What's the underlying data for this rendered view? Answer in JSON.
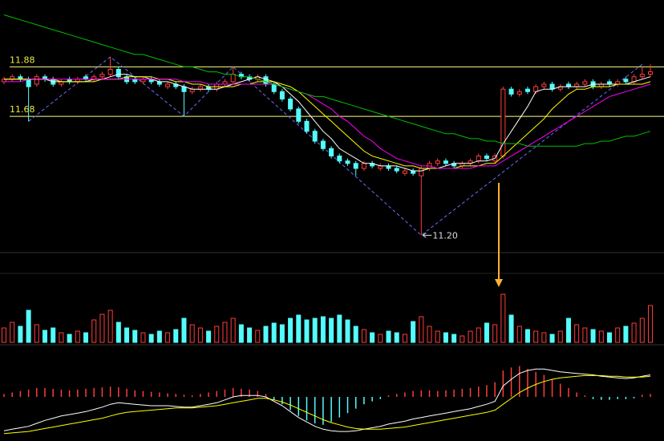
{
  "chart_data": {
    "type": "candlestick",
    "up_color": "#ff3c3c",
    "down_color": "#54fcfc",
    "ylim": [
      11.13,
      12.15
    ],
    "hlines": [
      11.88,
      11.68
    ],
    "hline_color": "#ffff80",
    "open": [
      11.82,
      11.83,
      11.84,
      11.83,
      11.81,
      11.84,
      11.83,
      11.81,
      11.83,
      11.82,
      11.84,
      11.83,
      11.84,
      11.85,
      11.87,
      11.84,
      11.83,
      11.82,
      11.83,
      11.82,
      11.8,
      11.81,
      11.8,
      11.78,
      11.79,
      11.8,
      11.79,
      11.81,
      11.82,
      11.85,
      11.84,
      11.83,
      11.84,
      11.81,
      11.78,
      11.75,
      11.71,
      11.66,
      11.62,
      11.58,
      11.55,
      11.52,
      11.5,
      11.49,
      11.47,
      11.49,
      11.47,
      11.48,
      11.47,
      11.45,
      11.46,
      11.44,
      11.47,
      11.49,
      11.5,
      11.49,
      11.48,
      11.49,
      11.5,
      11.52,
      11.5,
      11.52,
      11.79,
      11.77,
      11.79,
      11.78,
      11.8,
      11.81,
      11.79,
      11.81,
      11.8,
      11.81,
      11.82,
      11.8,
      11.82,
      11.81,
      11.83,
      11.82,
      11.84,
      11.85
    ],
    "high": [
      11.84,
      11.85,
      11.85,
      11.84,
      11.85,
      11.85,
      11.84,
      11.83,
      11.84,
      11.84,
      11.85,
      11.85,
      11.86,
      11.92,
      11.88,
      11.85,
      11.84,
      11.84,
      11.84,
      11.83,
      11.82,
      11.82,
      11.81,
      11.8,
      11.81,
      11.81,
      11.82,
      11.83,
      11.88,
      11.86,
      11.85,
      11.85,
      11.85,
      11.82,
      11.79,
      11.76,
      11.72,
      11.67,
      11.63,
      11.59,
      11.56,
      11.53,
      11.51,
      11.5,
      11.5,
      11.5,
      11.49,
      11.49,
      11.48,
      11.47,
      11.47,
      11.48,
      11.5,
      11.51,
      11.51,
      11.5,
      11.5,
      11.51,
      11.53,
      11.53,
      11.53,
      11.8,
      11.8,
      11.79,
      11.8,
      11.81,
      11.82,
      11.82,
      11.81,
      11.82,
      11.82,
      11.83,
      11.83,
      11.82,
      11.83,
      11.83,
      11.84,
      11.85,
      11.88,
      11.89
    ],
    "low": [
      11.81,
      11.82,
      11.82,
      11.66,
      11.8,
      11.82,
      11.8,
      11.8,
      11.81,
      11.81,
      11.82,
      11.82,
      11.83,
      11.84,
      11.83,
      11.81,
      11.81,
      11.81,
      11.81,
      11.8,
      11.79,
      11.79,
      11.68,
      11.77,
      11.78,
      11.78,
      11.78,
      11.8,
      11.81,
      11.83,
      11.82,
      11.82,
      11.8,
      11.77,
      11.74,
      11.7,
      11.65,
      11.61,
      11.57,
      11.54,
      11.51,
      11.49,
      11.48,
      11.44,
      11.46,
      11.47,
      11.46,
      11.46,
      11.45,
      11.44,
      11.44,
      11.2,
      11.46,
      11.48,
      11.48,
      11.47,
      11.47,
      11.48,
      11.49,
      11.5,
      11.49,
      11.51,
      11.76,
      11.76,
      11.77,
      11.77,
      11.79,
      11.78,
      11.78,
      11.79,
      11.79,
      11.8,
      11.79,
      11.79,
      11.8,
      11.8,
      11.81,
      11.81,
      11.83,
      11.84
    ],
    "close": [
      11.83,
      11.84,
      11.83,
      11.8,
      11.84,
      11.83,
      11.81,
      11.82,
      11.82,
      11.83,
      11.83,
      11.84,
      11.85,
      11.87,
      11.84,
      11.82,
      11.82,
      11.83,
      11.82,
      11.81,
      11.81,
      11.8,
      11.78,
      11.79,
      11.8,
      11.79,
      11.81,
      11.82,
      11.85,
      11.84,
      11.83,
      11.84,
      11.81,
      11.78,
      11.75,
      11.71,
      11.66,
      11.62,
      11.58,
      11.55,
      11.52,
      11.5,
      11.49,
      11.47,
      11.49,
      11.48,
      11.48,
      11.47,
      11.46,
      11.46,
      11.45,
      11.47,
      11.49,
      11.5,
      11.49,
      11.48,
      11.49,
      11.5,
      11.52,
      11.51,
      11.52,
      11.79,
      11.77,
      11.78,
      11.78,
      11.8,
      11.81,
      11.79,
      11.8,
      11.8,
      11.81,
      11.82,
      11.8,
      11.81,
      11.81,
      11.82,
      11.82,
      11.84,
      11.85,
      11.86
    ],
    "lines": [
      {
        "color": "#ffffff",
        "values": [
          11.83,
          11.83,
          11.83,
          11.83,
          11.83,
          11.83,
          11.82,
          11.82,
          11.82,
          11.82,
          11.82,
          11.83,
          11.83,
          11.84,
          11.85,
          11.85,
          11.84,
          11.84,
          11.83,
          11.82,
          11.82,
          11.81,
          11.8,
          11.79,
          11.79,
          11.79,
          11.79,
          11.8,
          11.81,
          11.82,
          11.83,
          11.84,
          11.83,
          11.82,
          11.8,
          11.77,
          11.74,
          11.7,
          11.66,
          11.62,
          11.59,
          11.55,
          11.53,
          11.51,
          11.49,
          11.49,
          11.48,
          11.48,
          11.48,
          11.47,
          11.46,
          11.46,
          11.47,
          11.47,
          11.48,
          11.49,
          11.49,
          11.49,
          11.5,
          11.5,
          11.51,
          11.57,
          11.62,
          11.67,
          11.72,
          11.78,
          11.79,
          11.79,
          11.8,
          11.8,
          11.8,
          11.8,
          11.81,
          11.81,
          11.81,
          11.81,
          11.81,
          11.82,
          11.83,
          11.84
        ]
      },
      {
        "color": "#ffff00",
        "values": [
          11.83,
          11.83,
          11.83,
          11.83,
          11.83,
          11.83,
          11.83,
          11.82,
          11.82,
          11.82,
          11.82,
          11.82,
          11.83,
          11.83,
          11.83,
          11.84,
          11.84,
          11.84,
          11.84,
          11.83,
          11.83,
          11.82,
          11.82,
          11.81,
          11.81,
          11.8,
          11.8,
          11.8,
          11.8,
          11.81,
          11.81,
          11.82,
          11.82,
          11.82,
          11.81,
          11.8,
          11.78,
          11.75,
          11.72,
          11.69,
          11.66,
          11.63,
          11.6,
          11.57,
          11.54,
          11.52,
          11.51,
          11.5,
          11.49,
          11.48,
          11.48,
          11.47,
          11.47,
          11.47,
          11.47,
          11.47,
          11.48,
          11.48,
          11.48,
          11.49,
          11.49,
          11.52,
          11.55,
          11.58,
          11.61,
          11.64,
          11.67,
          11.71,
          11.74,
          11.77,
          11.79,
          11.79,
          11.8,
          11.8,
          11.8,
          11.81,
          11.81,
          11.81,
          11.81,
          11.82
        ]
      },
      {
        "color": "#ff00ff",
        "values": [
          11.82,
          11.82,
          11.82,
          11.83,
          11.83,
          11.83,
          11.83,
          11.83,
          11.83,
          11.83,
          11.83,
          11.83,
          11.83,
          11.83,
          11.83,
          11.83,
          11.83,
          11.83,
          11.83,
          11.83,
          11.83,
          11.83,
          11.82,
          11.82,
          11.82,
          11.81,
          11.81,
          11.81,
          11.81,
          11.81,
          11.81,
          11.81,
          11.81,
          11.81,
          11.8,
          11.79,
          11.78,
          11.77,
          11.75,
          11.73,
          11.71,
          11.68,
          11.66,
          11.63,
          11.6,
          11.58,
          11.55,
          11.53,
          11.51,
          11.5,
          11.49,
          11.48,
          11.48,
          11.47,
          11.47,
          11.47,
          11.47,
          11.47,
          11.48,
          11.48,
          11.48,
          11.5,
          11.52,
          11.54,
          11.56,
          11.58,
          11.6,
          11.62,
          11.64,
          11.66,
          11.68,
          11.7,
          11.72,
          11.74,
          11.76,
          11.77,
          11.78,
          11.79,
          11.8,
          11.81
        ]
      },
      {
        "color": "#00c000",
        "values": [
          12.09,
          12.08,
          12.07,
          12.06,
          12.05,
          12.04,
          12.03,
          12.02,
          12.01,
          12.0,
          11.99,
          11.98,
          11.97,
          11.96,
          11.95,
          11.94,
          11.93,
          11.93,
          11.92,
          11.91,
          11.9,
          11.89,
          11.88,
          11.88,
          11.87,
          11.86,
          11.86,
          11.85,
          11.85,
          11.84,
          11.84,
          11.83,
          11.82,
          11.81,
          11.8,
          11.79,
          11.78,
          11.77,
          11.76,
          11.76,
          11.75,
          11.74,
          11.73,
          11.72,
          11.71,
          11.7,
          11.69,
          11.68,
          11.67,
          11.66,
          11.65,
          11.64,
          11.63,
          11.62,
          11.61,
          11.61,
          11.6,
          11.59,
          11.59,
          11.58,
          11.58,
          11.57,
          11.57,
          11.57,
          11.56,
          11.56,
          11.56,
          11.56,
          11.56,
          11.56,
          11.56,
          11.57,
          11.57,
          11.58,
          11.58,
          11.59,
          11.6,
          11.6,
          11.61,
          11.62
        ]
      }
    ],
    "zigzag": {
      "color": "#6b6bff",
      "index": [
        3,
        13,
        22,
        28,
        51,
        78
      ],
      "values": [
        11.66,
        11.92,
        11.68,
        11.88,
        11.2,
        11.89
      ]
    },
    "low_annotation": {
      "index": 51,
      "value": 11.2,
      "label": "11.20"
    },
    "volume": {
      "ylim": [
        0,
        62
      ],
      "values": [
        18,
        25,
        20,
        40,
        22,
        15,
        18,
        12,
        10,
        14,
        12,
        28,
        35,
        40,
        25,
        18,
        15,
        12,
        10,
        14,
        12,
        16,
        30,
        22,
        18,
        14,
        20,
        25,
        30,
        22,
        18,
        15,
        20,
        24,
        22,
        30,
        34,
        28,
        30,
        32,
        30,
        34,
        28,
        20,
        16,
        12,
        10,
        14,
        12,
        10,
        26,
        32,
        20,
        14,
        12,
        10,
        8,
        14,
        18,
        24,
        22,
        60,
        34,
        20,
        16,
        14,
        12,
        10,
        14,
        30,
        22,
        18,
        16,
        14,
        12,
        18,
        20,
        24,
        30,
        46
      ]
    },
    "macd": {
      "ylim": [
        -0.06,
        0.06
      ],
      "dif_color": "#ffffff",
      "dea_color": "#ffff00",
      "hist": [
        0.004,
        0.006,
        0.008,
        0.01,
        0.012,
        0.012,
        0.011,
        0.01,
        0.009,
        0.01,
        0.011,
        0.012,
        0.013,
        0.014,
        0.013,
        0.011,
        0.009,
        0.008,
        0.007,
        0.006,
        0.005,
        0.004,
        0.003,
        0.002,
        0.004,
        0.006,
        0.008,
        0.01,
        0.012,
        0.011,
        0.01,
        0.008,
        0.004,
        -0.004,
        -0.01,
        -0.018,
        -0.026,
        -0.032,
        -0.036,
        -0.038,
        -0.034,
        -0.028,
        -0.022,
        -0.016,
        -0.01,
        -0.006,
        -0.003,
        0.002,
        0.004,
        0.006,
        0.008,
        0.009,
        0.009,
        0.008,
        0.009,
        0.01,
        0.011,
        0.012,
        0.014,
        0.016,
        0.02,
        0.036,
        0.04,
        0.042,
        0.038,
        0.034,
        0.03,
        0.024,
        0.018,
        0.012,
        0.006,
        0.002,
        -0.003,
        -0.004,
        -0.004,
        -0.003,
        -0.003,
        -0.002,
        0.003,
        0.004
      ],
      "dif": [
        -0.046,
        -0.044,
        -0.042,
        -0.04,
        -0.036,
        -0.032,
        -0.029,
        -0.026,
        -0.024,
        -0.022,
        -0.02,
        -0.017,
        -0.014,
        -0.01,
        -0.008,
        -0.009,
        -0.01,
        -0.011,
        -0.012,
        -0.012,
        -0.012,
        -0.013,
        -0.014,
        -0.014,
        -0.012,
        -0.01,
        -0.008,
        -0.004,
        0.0,
        0.002,
        0.002,
        0.002,
        0.0,
        -0.006,
        -0.012,
        -0.02,
        -0.028,
        -0.034,
        -0.04,
        -0.044,
        -0.046,
        -0.047,
        -0.047,
        -0.046,
        -0.044,
        -0.042,
        -0.04,
        -0.037,
        -0.035,
        -0.033,
        -0.03,
        -0.028,
        -0.026,
        -0.024,
        -0.022,
        -0.02,
        -0.018,
        -0.016,
        -0.013,
        -0.01,
        -0.006,
        0.015,
        0.024,
        0.032,
        0.036,
        0.038,
        0.038,
        0.036,
        0.034,
        0.033,
        0.032,
        0.031,
        0.03,
        0.028,
        0.027,
        0.026,
        0.025,
        0.026,
        0.028,
        0.03
      ],
      "dea": [
        -0.05,
        -0.049,
        -0.048,
        -0.047,
        -0.045,
        -0.043,
        -0.041,
        -0.039,
        -0.037,
        -0.035,
        -0.033,
        -0.031,
        -0.029,
        -0.026,
        -0.023,
        -0.021,
        -0.02,
        -0.019,
        -0.018,
        -0.017,
        -0.016,
        -0.015,
        -0.015,
        -0.015,
        -0.014,
        -0.013,
        -0.012,
        -0.01,
        -0.008,
        -0.006,
        -0.004,
        -0.002,
        -0.002,
        -0.004,
        -0.007,
        -0.011,
        -0.016,
        -0.021,
        -0.026,
        -0.031,
        -0.035,
        -0.038,
        -0.041,
        -0.043,
        -0.044,
        -0.044,
        -0.044,
        -0.043,
        -0.042,
        -0.041,
        -0.039,
        -0.037,
        -0.035,
        -0.033,
        -0.031,
        -0.029,
        -0.027,
        -0.025,
        -0.023,
        -0.021,
        -0.018,
        -0.01,
        -0.002,
        0.006,
        0.012,
        0.017,
        0.021,
        0.024,
        0.026,
        0.027,
        0.028,
        0.029,
        0.029,
        0.029,
        0.028,
        0.028,
        0.027,
        0.027,
        0.027,
        0.028
      ]
    }
  }
}
